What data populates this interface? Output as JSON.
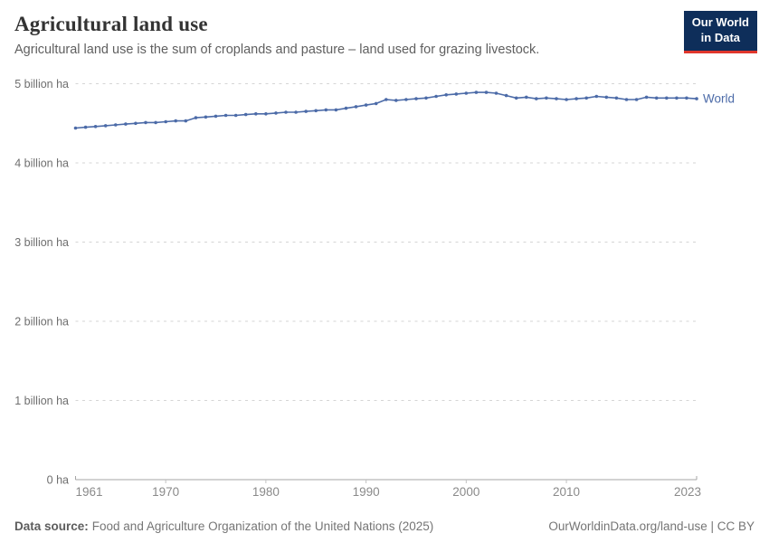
{
  "header": {
    "title": "Agricultural land use",
    "subtitle": "Agricultural land use is the sum of croplands and pasture – land used for grazing livestock.",
    "logo": {
      "line1": "Our World",
      "line2": "in Data"
    }
  },
  "chart_data": {
    "type": "line",
    "title": "Agricultural land use",
    "unit": "billion ha",
    "ylim": [
      0,
      5
    ],
    "grid": "horizontal-dashed",
    "legend_position": "end-of-line-label",
    "yticks": [
      {
        "value": 0,
        "label": "0 ha"
      },
      {
        "value": 1,
        "label": "1 billion ha"
      },
      {
        "value": 2,
        "label": "2 billion ha"
      },
      {
        "value": 3,
        "label": "3 billion ha"
      },
      {
        "value": 4,
        "label": "4 billion ha"
      },
      {
        "value": 5,
        "label": "5 billion ha"
      }
    ],
    "xticks": [
      1961,
      1970,
      1980,
      1990,
      2000,
      2010,
      2023
    ],
    "x": [
      1961,
      1962,
      1963,
      1964,
      1965,
      1966,
      1967,
      1968,
      1969,
      1970,
      1971,
      1972,
      1973,
      1974,
      1975,
      1976,
      1977,
      1978,
      1979,
      1980,
      1981,
      1982,
      1983,
      1984,
      1985,
      1986,
      1987,
      1988,
      1989,
      1990,
      1991,
      1992,
      1993,
      1994,
      1995,
      1996,
      1997,
      1998,
      1999,
      2000,
      2001,
      2002,
      2003,
      2004,
      2005,
      2006,
      2007,
      2008,
      2009,
      2010,
      2011,
      2012,
      2013,
      2014,
      2015,
      2016,
      2017,
      2018,
      2019,
      2020,
      2021,
      2022,
      2023
    ],
    "series": [
      {
        "name": "World",
        "color": "#4c6ba8",
        "values": [
          4.44,
          4.45,
          4.46,
          4.47,
          4.48,
          4.49,
          4.5,
          4.51,
          4.51,
          4.52,
          4.53,
          4.53,
          4.57,
          4.58,
          4.59,
          4.6,
          4.6,
          4.61,
          4.62,
          4.62,
          4.63,
          4.64,
          4.64,
          4.65,
          4.66,
          4.67,
          4.67,
          4.69,
          4.71,
          4.73,
          4.75,
          4.8,
          4.79,
          4.8,
          4.81,
          4.82,
          4.84,
          4.86,
          4.87,
          4.88,
          4.89,
          4.89,
          4.88,
          4.85,
          4.82,
          4.83,
          4.81,
          4.82,
          4.81,
          4.8,
          4.81,
          4.82,
          4.84,
          4.83,
          4.82,
          4.8,
          4.8,
          4.83,
          4.82,
          4.82,
          4.82,
          4.82,
          4.81
        ]
      }
    ]
  },
  "footer": {
    "source_label": "Data source:",
    "source_text": "Food and Agriculture Organization of the United Nations (2025)",
    "link_text": "OurWorldinData.org/land-use | CC BY"
  },
  "colors": {
    "line": "#4c6ba8",
    "grid": "#d5d5d5",
    "axis": "#a5a5a5",
    "tick": "#c2c2c2",
    "ytick_text": "#6e6e6e",
    "xtick_text": "#8a8a8a",
    "logo_bg": "#0e2e5a",
    "logo_red": "#e0362c"
  }
}
